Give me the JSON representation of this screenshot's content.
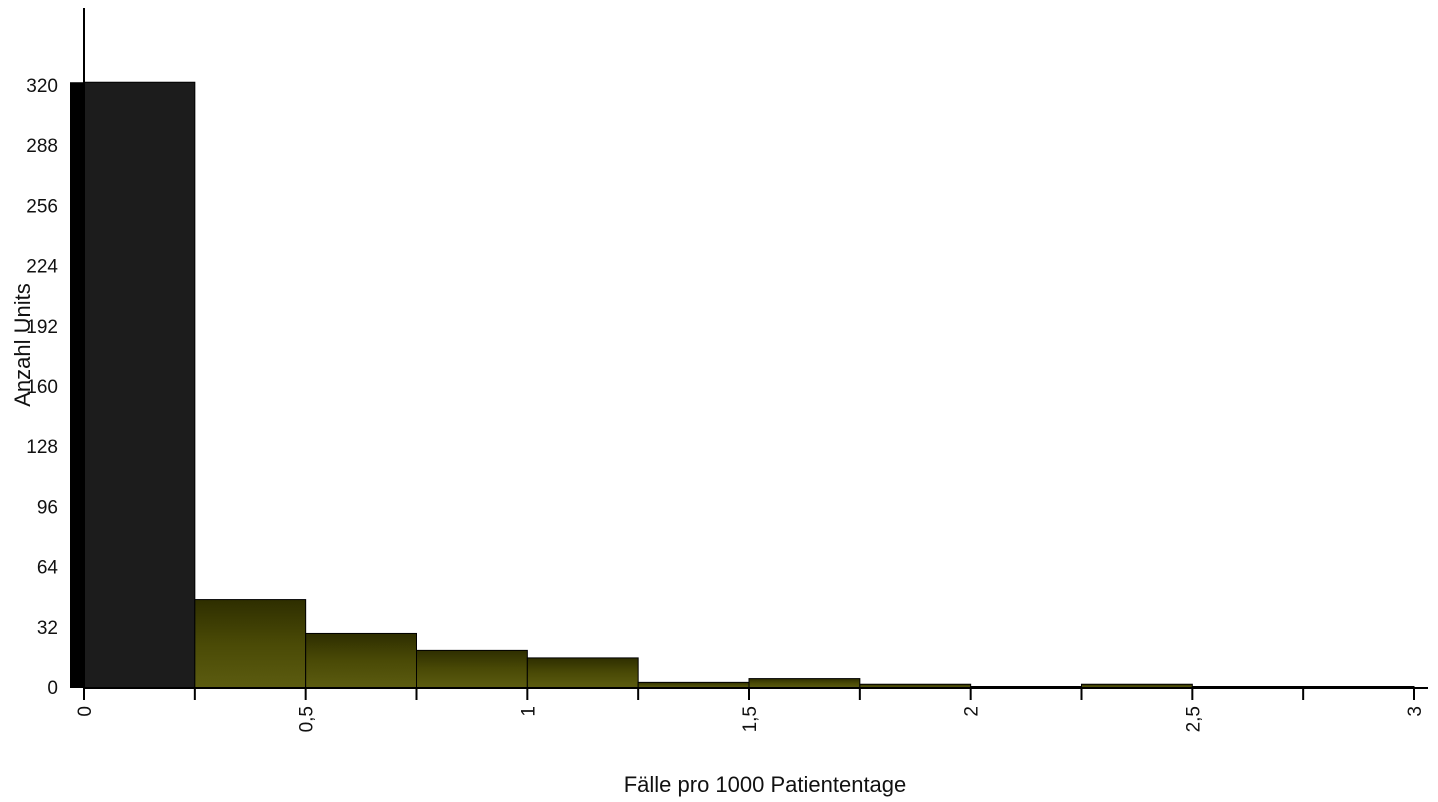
{
  "chart_data": {
    "type": "bar",
    "subtype": "histogram",
    "xlabel": "Fälle pro 1000 Patiententage",
    "ylabel": "Anzahl Units",
    "bin_width": 0.25,
    "xlim": [
      0,
      3
    ],
    "ylim": [
      0,
      352
    ],
    "x_tick_values": [
      0,
      0.5,
      1,
      1.5,
      2,
      2.5,
      3
    ],
    "x_tick_labels": [
      "0",
      "0,5",
      "1",
      "1,5",
      "2",
      "2,5",
      "3"
    ],
    "y_ticks": [
      0,
      32,
      64,
      96,
      128,
      160,
      192,
      224,
      256,
      288,
      320
    ],
    "grid": false,
    "bins": [
      {
        "x0": 0.0,
        "x1": 0.25,
        "value": 322
      },
      {
        "x0": 0.25,
        "x1": 0.5,
        "value": 47
      },
      {
        "x0": 0.5,
        "x1": 0.75,
        "value": 29
      },
      {
        "x0": 0.75,
        "x1": 1.0,
        "value": 20
      },
      {
        "x0": 1.0,
        "x1": 1.25,
        "value": 16
      },
      {
        "x0": 1.25,
        "x1": 1.5,
        "value": 3
      },
      {
        "x0": 1.5,
        "x1": 1.75,
        "value": 5
      },
      {
        "x0": 1.75,
        "x1": 2.0,
        "value": 2
      },
      {
        "x0": 2.0,
        "x1": 2.25,
        "value": 0.5
      },
      {
        "x0": 2.25,
        "x1": 2.5,
        "value": 2
      },
      {
        "x0": 2.5,
        "x1": 2.75,
        "value": 0.5
      },
      {
        "x0": 2.75,
        "x1": 3.0,
        "value": 0.5
      }
    ],
    "colors": {
      "first_bin": "#1c1c1c",
      "other_bins": "#3c3c00",
      "other_bins_light": "#5e5e0e",
      "axis": "#000000"
    }
  }
}
